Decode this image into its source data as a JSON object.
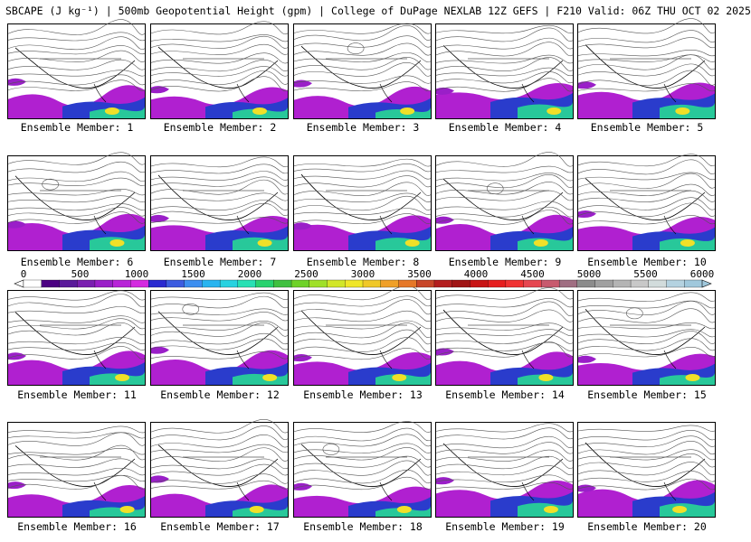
{
  "title": "SBCAPE (J kg⁻¹) | 500mb Geopotential Height (gpm) | College of DuPage NEXLAB 12Z GEFS | F210 Valid: 06Z THU OCT 02 2025",
  "members": [
    {
      "label": "Ensemble Member: 1"
    },
    {
      "label": "Ensemble Member: 2"
    },
    {
      "label": "Ensemble Member: 3"
    },
    {
      "label": "Ensemble Member: 4"
    },
    {
      "label": "Ensemble Member: 5"
    },
    {
      "label": "Ensemble Member: 6"
    },
    {
      "label": "Ensemble Member: 7"
    },
    {
      "label": "Ensemble Member: 8"
    },
    {
      "label": "Ensemble Member: 9"
    },
    {
      "label": "Ensemble Member: 10"
    },
    {
      "label": "Ensemble Member: 11"
    },
    {
      "label": "Ensemble Member: 12"
    },
    {
      "label": "Ensemble Member: 13"
    },
    {
      "label": "Ensemble Member: 14"
    },
    {
      "label": "Ensemble Member: 15"
    },
    {
      "label": "Ensemble Member: 16"
    },
    {
      "label": "Ensemble Member: 17"
    },
    {
      "label": "Ensemble Member: 18"
    },
    {
      "label": "Ensemble Member: 19"
    },
    {
      "label": "Ensemble Member: 20"
    }
  ],
  "colorbar": {
    "ticks": [
      "0",
      "500",
      "1000",
      "1500",
      "2000",
      "2500",
      "3000",
      "3500",
      "4000",
      "4500",
      "5000",
      "5500",
      "6000"
    ],
    "colors": [
      "#ffffff",
      "#4b0082",
      "#5a1a9a",
      "#7a1fb0",
      "#9a1fc8",
      "#b824d8",
      "#d42ae0",
      "#2a2ad0",
      "#3c5ce0",
      "#3c8ef0",
      "#28b4f0",
      "#28d2e0",
      "#28e0b4",
      "#28d26e",
      "#40c040",
      "#6ed228",
      "#a0e028",
      "#d2e628",
      "#f0e628",
      "#f0c828",
      "#f0a028",
      "#e67828",
      "#c84628",
      "#b41e1e",
      "#a01414",
      "#c81414",
      "#e61e1e",
      "#f03232",
      "#e64650",
      "#c85a6e",
      "#a06e82",
      "#8c8c8c",
      "#a0a0a0",
      "#b4b4b4",
      "#c8c8c8",
      "#d2dcdc",
      "#b4d2e0",
      "#a0c8dc"
    ]
  }
}
